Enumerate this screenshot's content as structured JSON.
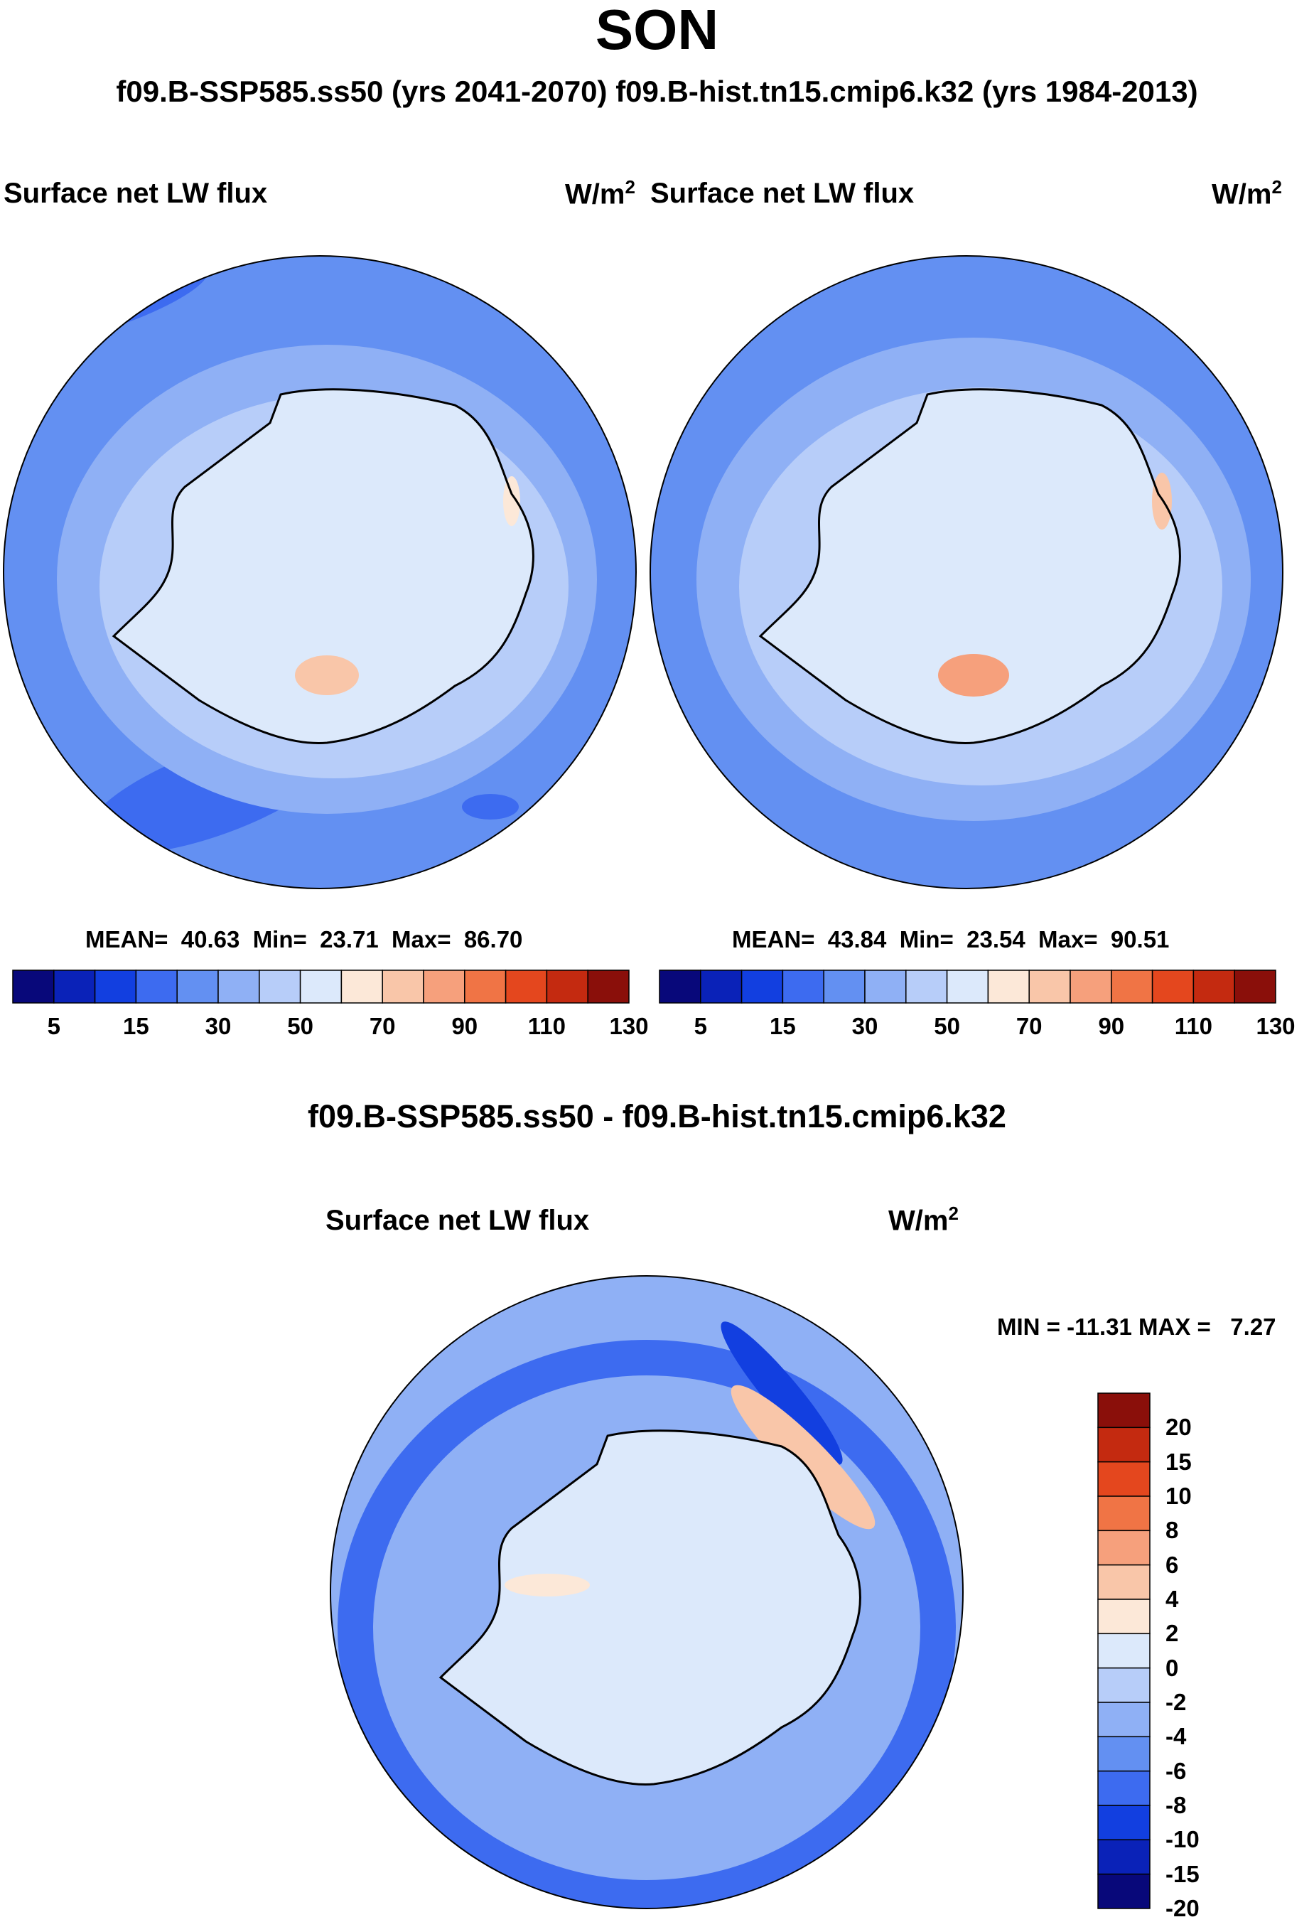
{
  "figure": {
    "title": "SON",
    "subtitle": "f09.B-SSP585.ss50 (yrs 2041-2070)  f09.B-hist.tn15.cmip6.k32 (yrs 1984-2013)"
  },
  "panels": [
    {
      "label": "Surface net LW flux",
      "units_base": "W/m",
      "units_exp": "2",
      "stats": "MEAN=  40.63  Min=  23.71  Max=  86.70"
    },
    {
      "label": "Surface net LW flux",
      "units_base": "W/m",
      "units_exp": "2",
      "stats": "MEAN=  43.84  Min=  23.54  Max=  90.51"
    },
    {
      "title": "f09.B-SSP585.ss50 - f09.B-hist.tn15.cmip6.k32",
      "label": "Surface net LW flux",
      "units_base": "W/m",
      "units_exp": "2",
      "stats": "MIN = -11.31 MAX =   7.27"
    }
  ],
  "colorbars": {
    "horizontal_ticks": [
      "5",
      "15",
      "30",
      "50",
      "70",
      "90",
      "110",
      "130"
    ],
    "vertical_ticks": [
      "20",
      "15",
      "10",
      "8",
      "6",
      "4",
      "2",
      "0",
      "-2",
      "-4",
      "-6",
      "-8",
      "-10",
      "-15",
      "-20"
    ],
    "palette": [
      "#08087a",
      "#0a22b8",
      "#123fe0",
      "#3d6bf0",
      "#6390f2",
      "#8fb0f5",
      "#b7cdf9",
      "#dce9fb",
      "#fce8d8",
      "#f9c6a9",
      "#f6a07c",
      "#f07445",
      "#e4471e",
      "#c42a10",
      "#8a0f0a"
    ]
  },
  "chart_data": [
    {
      "type": "heatmap",
      "projection": "south polar stereographic",
      "title": "Surface net LW flux",
      "units": "W/m2",
      "period": "f09.B-SSP585.ss50 (yrs 2041-2070)",
      "mean": 40.63,
      "min": 23.71,
      "max": 86.7,
      "levels": [
        5,
        10,
        15,
        20,
        30,
        40,
        50,
        60,
        70,
        80,
        90,
        100,
        110,
        120,
        130
      ]
    },
    {
      "type": "heatmap",
      "projection": "south polar stereographic",
      "title": "Surface net LW flux",
      "units": "W/m2",
      "period": "f09.B-hist.tn15.cmip6.k32 (yrs 1984-2013)",
      "mean": 43.84,
      "min": 23.54,
      "max": 90.51,
      "levels": [
        5,
        10,
        15,
        20,
        30,
        40,
        50,
        60,
        70,
        80,
        90,
        100,
        110,
        120,
        130
      ]
    },
    {
      "type": "heatmap",
      "projection": "south polar stereographic",
      "title": "f09.B-SSP585.ss50 - f09.B-hist.tn15.cmip6.k32",
      "units": "W/m2",
      "min": -11.31,
      "max": 7.27,
      "levels": [
        -20,
        -15,
        -10,
        -8,
        -6,
        -4,
        -2,
        0,
        2,
        4,
        6,
        8,
        10,
        15,
        20
      ]
    }
  ]
}
